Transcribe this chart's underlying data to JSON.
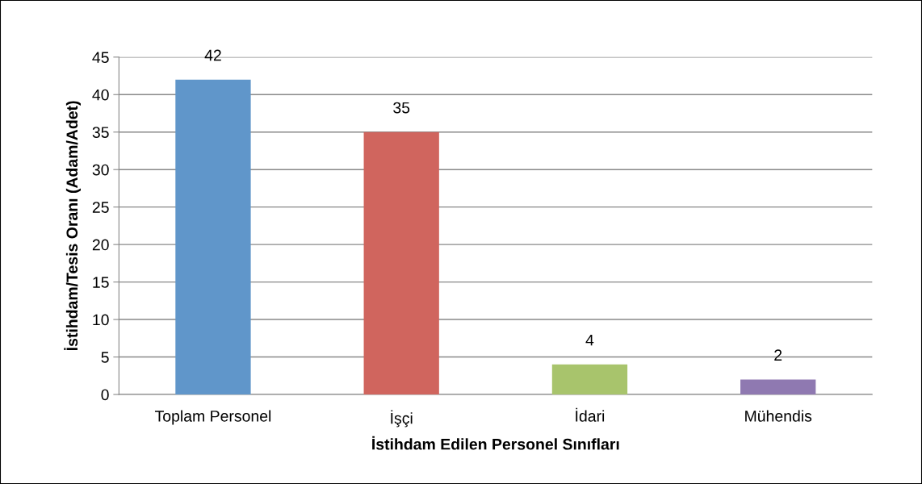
{
  "chart_data": {
    "type": "bar",
    "xlabel": "İstihdam Edilen Personel Sınıfları",
    "ylabel": "İstihdam/Tesis Oranı (Adam/Adet)",
    "categories": [
      "Toplam Personel",
      "İşçi",
      "İdari",
      "Mühendis"
    ],
    "values": [
      42,
      35,
      4,
      2
    ],
    "colors": [
      "#6096ca",
      "#d0655e",
      "#a8c46c",
      "#8f79b1"
    ],
    "ylim": [
      0,
      45
    ],
    "yticks": [
      0,
      5,
      10,
      15,
      20,
      25,
      30,
      35,
      40,
      45
    ],
    "grid": "y",
    "data_labels": true,
    "legend": false
  }
}
